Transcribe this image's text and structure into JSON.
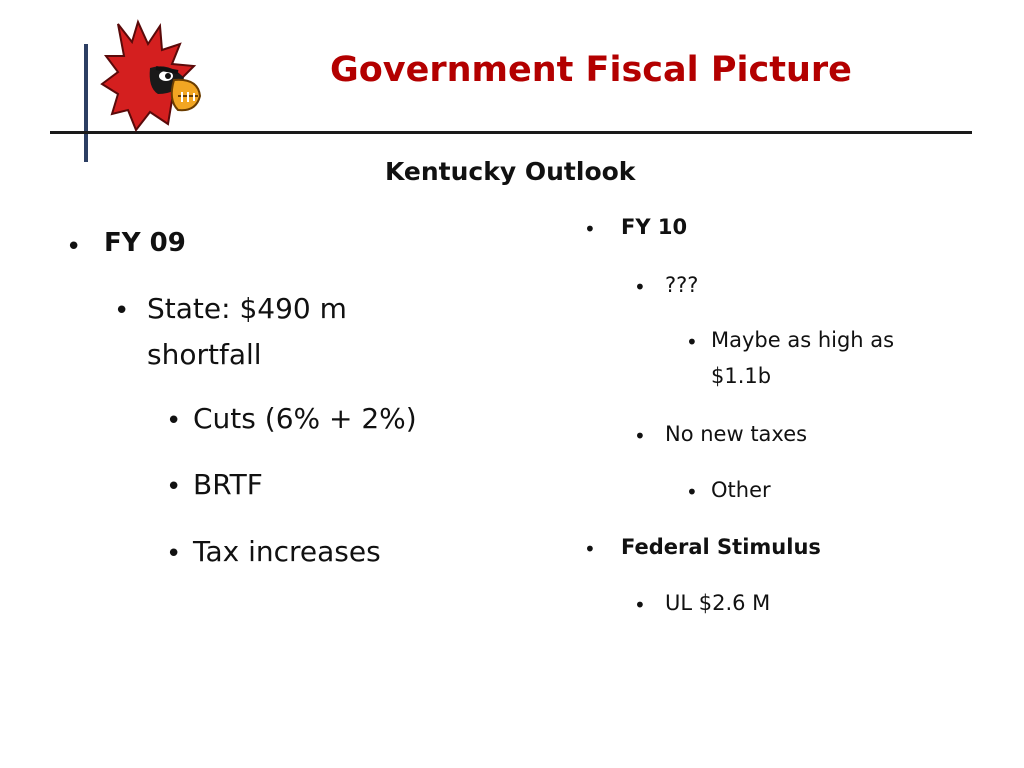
{
  "slide": {
    "title": "Government Fiscal Picture",
    "subtitle": "Kentucky Outlook",
    "logo_icon": "cardinal-mascot-icon",
    "accent_color": "#b30000"
  },
  "left": {
    "fy09": "FY 09",
    "state_line1": "State:  $490 m",
    "state_line2": "shortfall",
    "cuts": "Cuts (6% + 2%)",
    "brtf": "BRTF",
    "tax_increases": "Tax increases"
  },
  "right": {
    "fy10": "FY 10",
    "unknown": "???",
    "maybe_line1": "Maybe as high as",
    "maybe_line2": "$1.1b",
    "no_new_taxes": "No new taxes",
    "other": "Other",
    "federal_stimulus": "Federal Stimulus",
    "ul": "UL $2.6 M"
  }
}
